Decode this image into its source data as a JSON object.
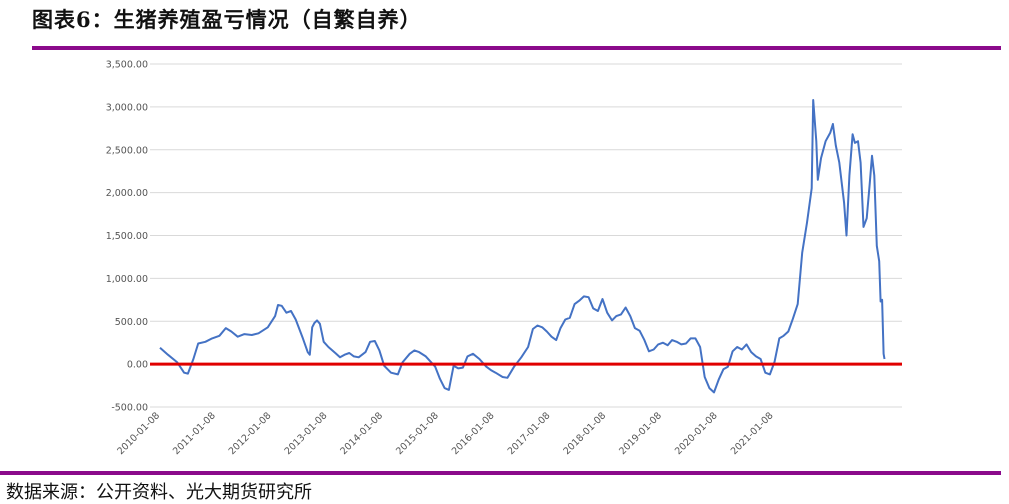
{
  "figure_title": "图表6：生猪养殖盈亏情况（自繁自养）",
  "source_note": "数据来源：公开资料、光大期货研究所",
  "colors": {
    "accent_rule": "#8B0A8B",
    "series_line": "#4472C4",
    "zero_line": "#E00000",
    "grid": "#D9D9D9"
  },
  "chart_data": {
    "type": "line",
    "title": "图表6：生猪养殖盈亏情况（自繁自养）",
    "xlabel": "",
    "ylabel": "",
    "ylim": [
      -500,
      3500
    ],
    "yticks": [
      "3,500.00",
      "3,000.00",
      "2,500.00",
      "2,000.00",
      "1,500.00",
      "1,000.00",
      "500.00",
      "0.00",
      "-500.00"
    ],
    "xticks": [
      "2010-01-08",
      "2011-01-08",
      "2012-01-08",
      "2013-01-08",
      "2014-01-08",
      "2015-01-08",
      "2016-01-08",
      "2017-01-08",
      "2018-01-08",
      "2019-01-08",
      "2020-01-08",
      "2021-01-08"
    ],
    "grid": true,
    "reference_line": 0,
    "series": [
      {
        "values": [
          [
            "2010-01-08",
            190
          ],
          [
            "2010-03-01",
            110
          ],
          [
            "2010-05-01",
            20
          ],
          [
            "2010-06-15",
            -100
          ],
          [
            "2010-07-10",
            -110
          ],
          [
            "2010-08-15",
            60
          ],
          [
            "2010-09-15",
            240
          ],
          [
            "2010-11-01",
            260
          ],
          [
            "2010-12-15",
            300
          ],
          [
            "2011-02-01",
            330
          ],
          [
            "2011-03-15",
            420
          ],
          [
            "2011-04-20",
            380
          ],
          [
            "2011-06-01",
            320
          ],
          [
            "2011-07-15",
            350
          ],
          [
            "2011-09-01",
            340
          ],
          [
            "2011-10-15",
            360
          ],
          [
            "2011-12-15",
            430
          ],
          [
            "2012-02-01",
            560
          ],
          [
            "2012-02-20",
            690
          ],
          [
            "2012-03-15",
            680
          ],
          [
            "2012-04-15",
            600
          ],
          [
            "2012-05-15",
            620
          ],
          [
            "2012-06-15",
            520
          ],
          [
            "2012-08-01",
            300
          ],
          [
            "2012-09-01",
            140
          ],
          [
            "2012-09-15",
            110
          ],
          [
            "2012-10-01",
            430
          ],
          [
            "2012-10-15",
            480
          ],
          [
            "2012-11-01",
            510
          ],
          [
            "2012-11-20",
            470
          ],
          [
            "2012-12-15",
            260
          ],
          [
            "2013-01-15",
            200
          ],
          [
            "2013-03-01",
            130
          ],
          [
            "2013-04-01",
            80
          ],
          [
            "2013-05-01",
            110
          ],
          [
            "2013-06-01",
            130
          ],
          [
            "2013-07-01",
            90
          ],
          [
            "2013-08-01",
            80
          ],
          [
            "2013-09-15",
            140
          ],
          [
            "2013-10-15",
            260
          ],
          [
            "2013-11-15",
            270
          ],
          [
            "2013-12-15",
            160
          ],
          [
            "2014-01-15",
            -20
          ],
          [
            "2014-03-01",
            -100
          ],
          [
            "2014-04-15",
            -120
          ],
          [
            "2014-05-15",
            20
          ],
          [
            "2014-07-01",
            120
          ],
          [
            "2014-08-01",
            160
          ],
          [
            "2014-09-01",
            140
          ],
          [
            "2014-10-15",
            90
          ],
          [
            "2014-12-15",
            -30
          ],
          [
            "2015-01-15",
            -170
          ],
          [
            "2015-02-15",
            -280
          ],
          [
            "2015-03-15",
            -300
          ],
          [
            "2015-04-15",
            -20
          ],
          [
            "2015-05-15",
            -50
          ],
          [
            "2015-06-15",
            -40
          ],
          [
            "2015-07-15",
            90
          ],
          [
            "2015-08-20",
            120
          ],
          [
            "2015-10-01",
            60
          ],
          [
            "2015-11-15",
            -30
          ],
          [
            "2015-12-15",
            -70
          ],
          [
            "2016-01-15",
            -100
          ],
          [
            "2016-03-01",
            -150
          ],
          [
            "2016-04-01",
            -160
          ],
          [
            "2016-05-15",
            -30
          ],
          [
            "2016-07-01",
            80
          ],
          [
            "2016-08-15",
            200
          ],
          [
            "2016-09-15",
            410
          ],
          [
            "2016-10-15",
            450
          ],
          [
            "2016-11-15",
            430
          ],
          [
            "2016-12-15",
            380
          ],
          [
            "2017-01-15",
            320
          ],
          [
            "2017-02-15",
            280
          ],
          [
            "2017-03-15",
            420
          ],
          [
            "2017-04-15",
            520
          ],
          [
            "2017-05-15",
            540
          ],
          [
            "2017-06-15",
            700
          ],
          [
            "2017-07-15",
            740
          ],
          [
            "2017-08-15",
            790
          ],
          [
            "2017-09-15",
            780
          ],
          [
            "2017-10-15",
            650
          ],
          [
            "2017-11-15",
            620
          ],
          [
            "2017-12-15",
            760
          ],
          [
            "2018-01-15",
            600
          ],
          [
            "2018-02-15",
            510
          ],
          [
            "2018-03-15",
            560
          ],
          [
            "2018-04-15",
            580
          ],
          [
            "2018-05-15",
            660
          ],
          [
            "2018-06-15",
            560
          ],
          [
            "2018-07-15",
            420
          ],
          [
            "2018-08-15",
            390
          ],
          [
            "2018-09-15",
            280
          ],
          [
            "2018-10-15",
            150
          ],
          [
            "2018-11-15",
            170
          ],
          [
            "2018-12-15",
            230
          ],
          [
            "2019-01-15",
            250
          ],
          [
            "2019-02-15",
            220
          ],
          [
            "2019-03-15",
            280
          ],
          [
            "2019-04-15",
            260
          ],
          [
            "2019-05-15",
            230
          ],
          [
            "2019-06-15",
            240
          ],
          [
            "2019-07-15",
            300
          ],
          [
            "2019-08-15",
            300
          ],
          [
            "2019-09-15",
            200
          ],
          [
            "2019-10-15",
            -150
          ],
          [
            "2019-11-15",
            -280
          ],
          [
            "2019-12-15",
            -330
          ],
          [
            "2020-01-15",
            -180
          ],
          [
            "2020-02-15",
            -60
          ],
          [
            "2020-03-15",
            -30
          ],
          [
            "2020-04-15",
            150
          ],
          [
            "2020-05-15",
            200
          ],
          [
            "2020-06-15",
            170
          ],
          [
            "2020-07-15",
            230
          ],
          [
            "2020-08-15",
            140
          ],
          [
            "2020-09-15",
            90
          ],
          [
            "2020-10-15",
            60
          ],
          [
            "2020-11-15",
            -100
          ],
          [
            "2020-12-15",
            -120
          ],
          [
            "2021-01-15",
            30
          ],
          [
            "2021-02-15",
            300
          ],
          [
            "2021-03-15",
            330
          ],
          [
            "2021-04-15",
            380
          ],
          [
            "2021-05-15",
            530
          ],
          [
            "2021-06-15",
            700
          ],
          [
            "2021-07-15",
            1300
          ],
          [
            "2021-08-15",
            1650
          ],
          [
            "2021-09-15",
            2050
          ],
          [
            "2021-09-25",
            3080
          ],
          [
            "2021-10-15",
            2600
          ],
          [
            "2021-10-25",
            2150
          ],
          [
            "2021-11-15",
            2400
          ],
          [
            "2021-12-15",
            2600
          ],
          [
            "2022-01-15",
            2700
          ],
          [
            "2022-02-01",
            2800
          ],
          [
            "2022-02-20",
            2550
          ],
          [
            "2022-03-15",
            2350
          ],
          [
            "2022-04-15",
            1880
          ],
          [
            "2022-05-01",
            1500
          ],
          [
            "2022-05-20",
            2200
          ],
          [
            "2022-06-10",
            2680
          ],
          [
            "2022-06-25",
            2580
          ],
          [
            "2022-07-15",
            2600
          ],
          [
            "2022-08-01",
            2350
          ],
          [
            "2022-08-20",
            1600
          ],
          [
            "2022-09-10",
            1700
          ],
          [
            "2022-09-30",
            2100
          ],
          [
            "2022-10-15",
            2430
          ],
          [
            "2022-10-30",
            2200
          ],
          [
            "2022-11-15",
            1380
          ],
          [
            "2022-12-01",
            1200
          ],
          [
            "2022-12-10",
            730
          ],
          [
            "2022-12-20",
            750
          ],
          [
            "2022-12-30",
            120
          ],
          [
            "2023-01-05",
            60
          ]
        ]
      }
    ]
  }
}
